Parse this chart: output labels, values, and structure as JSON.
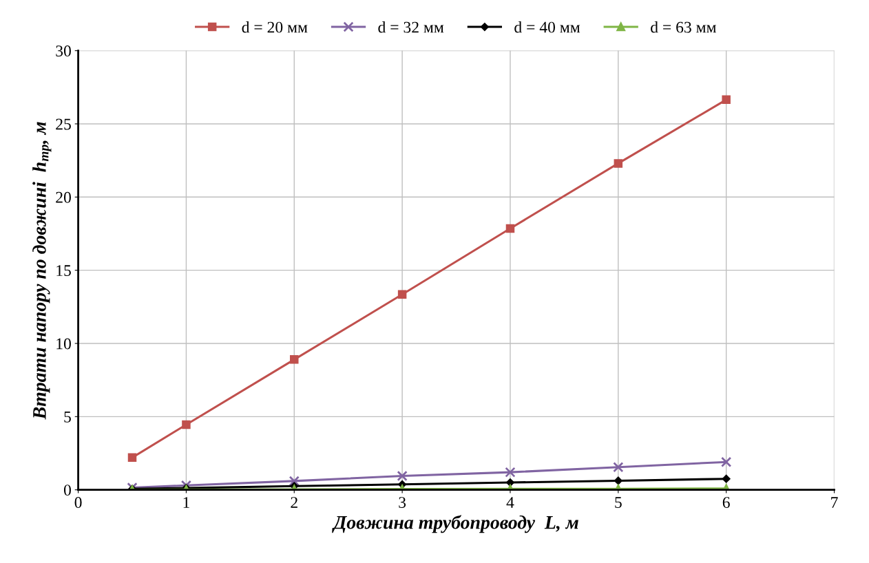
{
  "chart_data": {
    "type": "line",
    "xlabel": "Довжина трубопроводу  L, м",
    "ylabel": "Втрати напору по довжині  h$_{тр}$, м",
    "x": [
      0.5,
      1,
      2,
      3,
      4,
      5,
      6
    ],
    "series": [
      {
        "name": "d = 20 мм",
        "color": "#c0504d",
        "marker": "square",
        "values": [
          2.2,
          4.45,
          8.9,
          13.35,
          17.85,
          22.3,
          26.65
        ]
      },
      {
        "name": "d = 32 мм",
        "color": "#8064a2",
        "marker": "cross",
        "values": [
          0.15,
          0.3,
          0.6,
          0.95,
          1.2,
          1.55,
          1.9
        ]
      },
      {
        "name": "d = 40 мм",
        "color": "#000000",
        "marker": "diamond",
        "values": [
          0.06,
          0.12,
          0.25,
          0.37,
          0.5,
          0.62,
          0.75
        ]
      },
      {
        "name": "d = 63 мм",
        "color": "#7fb545",
        "marker": "triangle",
        "values": [
          0.01,
          0.02,
          0.03,
          0.05,
          0.06,
          0.07,
          0.09
        ]
      }
    ],
    "xlim": [
      0,
      7
    ],
    "xticks": [
      0,
      1,
      2,
      3,
      4,
      5,
      6,
      7
    ],
    "ylim": [
      0,
      30
    ],
    "yticks": [
      0,
      5,
      10,
      15,
      20,
      25,
      30
    ],
    "grid": true,
    "legend": "top"
  }
}
